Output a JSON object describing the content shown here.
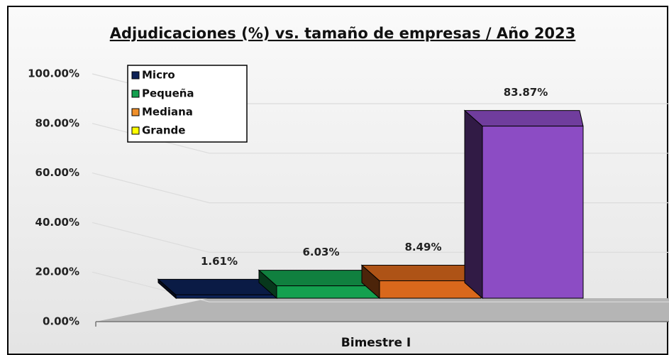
{
  "chart_data": {
    "type": "bar3d",
    "title": "Adjudicaciones (%) vs. tamaño de empresas / Año 2023",
    "categories": [
      "Bimestre I"
    ],
    "series": [
      {
        "name": "Micro",
        "color": "#0d2256",
        "legend_color": "#0d2256",
        "values": [
          1.61
        ],
        "value_labels": [
          "1.61%"
        ]
      },
      {
        "name": "Pequeña",
        "color": "#14a04f",
        "legend_color": "#14a04f",
        "values": [
          6.03
        ],
        "value_labels": [
          "6.03%"
        ]
      },
      {
        "name": "Mediana",
        "color": "#d9681c",
        "legend_color": "#f0902a",
        "values": [
          8.49
        ],
        "value_labels": [
          "8.49%"
        ]
      },
      {
        "name": "Grande",
        "color": "#8c4cc4",
        "legend_color": "#ffff00",
        "values": [
          83.87
        ],
        "value_labels": [
          "83.87%"
        ]
      }
    ],
    "ylim": [
      0,
      100
    ],
    "yticks": [
      {
        "value": 0,
        "label": "0.00%"
      },
      {
        "value": 20,
        "label": "20.00%"
      },
      {
        "value": 40,
        "label": "40.00%"
      },
      {
        "value": 60,
        "label": "60.00%"
      },
      {
        "value": 80,
        "label": "80.00%"
      },
      {
        "value": 100,
        "label": "100.00%"
      }
    ],
    "grid": true,
    "legend": "upper-left"
  }
}
